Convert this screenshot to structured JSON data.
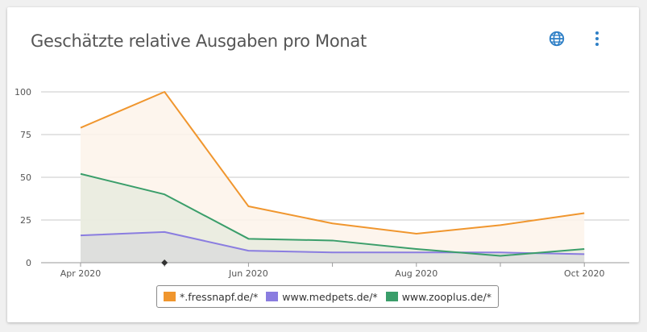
{
  "card": {
    "title": "Geschätzte relative Ausgaben pro Monat",
    "globe_icon": "globe-icon",
    "more_icon": "more-vertical-icon",
    "accent_color": "#2e7fc6"
  },
  "chart_data": {
    "type": "area",
    "title": "Geschätzte relative Ausgaben pro Monat",
    "x": [
      "2020-04",
      "2020-05",
      "2020-06",
      "2020-07",
      "2020-08",
      "2020-09",
      "2020-10"
    ],
    "x_tick_labels": [
      {
        "x": "2020-04",
        "label": "Apr 2020"
      },
      {
        "x": "2020-06",
        "label": "Jun 2020"
      },
      {
        "x": "2020-08",
        "label": "Aug 2020"
      },
      {
        "x": "2020-10",
        "label": "Oct 2020"
      }
    ],
    "y_ticks": [
      0,
      25,
      50,
      75,
      100
    ],
    "ylim": [
      0,
      100
    ],
    "grid": true,
    "legend_position": "bottom",
    "series": [
      {
        "name": "*.fressnapf.de/*",
        "color": "#f0962e",
        "fill": "#fdf3ea",
        "values": [
          79,
          100,
          33,
          23,
          17,
          22,
          29
        ]
      },
      {
        "name": "www.medpets.de/*",
        "color": "#8a7de0",
        "fill": "#dcdcdc",
        "values": [
          16,
          18,
          7,
          6,
          6,
          6,
          5
        ]
      },
      {
        "name": "www.zooplus.de/*",
        "color": "#3a9e6a",
        "fill": "#e8ebde",
        "values": [
          52,
          40,
          14,
          13,
          8,
          4,
          8
        ]
      }
    ]
  }
}
